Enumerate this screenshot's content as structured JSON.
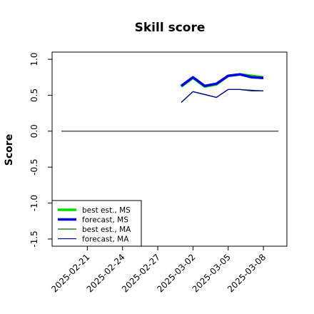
{
  "chart_data": {
    "type": "line",
    "title": "Skill score",
    "ylabel": "Score",
    "x": [
      "2025-03-01",
      "2025-03-02",
      "2025-03-03",
      "2025-03-04",
      "2025-03-05",
      "2025-03-06",
      "2025-03-07",
      "2025-03-08"
    ],
    "series": [
      {
        "name": "best est., MS",
        "color": "#00e000",
        "width": 3.5,
        "values": [
          0.62,
          0.74,
          0.62,
          0.65,
          0.77,
          0.79,
          0.77,
          0.75
        ]
      },
      {
        "name": "forecast, MS",
        "color": "#0000e0",
        "width": 3.5,
        "values": [
          0.63,
          0.75,
          0.63,
          0.66,
          0.77,
          0.79,
          0.75,
          0.74
        ]
      },
      {
        "name": "best est., MA",
        "color": "#006400",
        "width": 1.3,
        "values": [
          0.4,
          0.55,
          0.51,
          0.47,
          0.58,
          0.58,
          0.57,
          0.56
        ]
      },
      {
        "name": "forecast, MA",
        "color": "#00008b",
        "width": 1.3,
        "values": [
          0.4,
          0.55,
          0.51,
          0.47,
          0.58,
          0.58,
          0.56,
          0.56
        ]
      }
    ],
    "xlim": [
      "2025-02-18",
      "2025-03-10"
    ],
    "xticks": [
      "2025-02-21",
      "2025-02-24",
      "2025-02-27",
      "2025-03-02",
      "2025-03-05",
      "2025-03-08"
    ],
    "xtick_colors": [
      "#000000",
      "#000000",
      "#008000",
      "#000000",
      "#000000",
      "#000000"
    ],
    "ylim": [
      -1.6,
      1.1
    ],
    "yticks": [
      {
        "value": -1.5,
        "label": "-1.5"
      },
      {
        "value": -1,
        "label": "-1.0"
      },
      {
        "value": -0.5,
        "label": "-0.5"
      },
      {
        "value": 0,
        "label": "0.0"
      },
      {
        "value": 0.5,
        "label": "0.5"
      },
      {
        "value": 1,
        "label": "1.0"
      }
    ],
    "hline": 0,
    "legend": "bottom-left"
  }
}
